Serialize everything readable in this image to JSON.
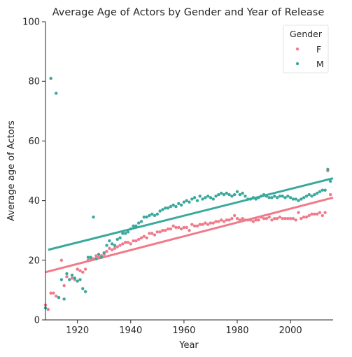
{
  "chart_data": {
    "type": "scatter",
    "title": "Average Age of Actors by Gender and Year of Release",
    "xlabel": "Year",
    "ylabel": "Average age of Actors",
    "xlim": [
      1908,
      2016
    ],
    "ylim": [
      0,
      100
    ],
    "xticks": [
      1920,
      1940,
      1960,
      1980,
      2000
    ],
    "yticks": [
      0,
      20,
      40,
      60,
      80,
      100
    ],
    "grid": false,
    "legend": {
      "title": "Gender",
      "placement": "top-right"
    },
    "series": [
      {
        "name": "F",
        "color": "#f07a8a",
        "trendline": {
          "x": [
            1908,
            2016
          ],
          "y": [
            16.0,
            41.0
          ]
        },
        "points": [
          [
            1908,
            5.0
          ],
          [
            1909,
            3.5
          ],
          [
            1910,
            9.0
          ],
          [
            1911,
            9.0
          ],
          [
            1912,
            8.0
          ],
          [
            1913,
            7.5
          ],
          [
            1914,
            20.0
          ],
          [
            1915,
            11.5
          ],
          [
            1916,
            14.5
          ],
          [
            1917,
            13.5
          ],
          [
            1918,
            14.0
          ],
          [
            1919,
            13.5
          ],
          [
            1920,
            17.0
          ],
          [
            1921,
            16.5
          ],
          [
            1922,
            16.0
          ],
          [
            1923,
            17.0
          ],
          [
            1924,
            20.0
          ],
          [
            1925,
            20.5
          ],
          [
            1926,
            20.5
          ],
          [
            1927,
            21.5
          ],
          [
            1928,
            21.0
          ],
          [
            1929,
            21.5
          ],
          [
            1930,
            22.0
          ],
          [
            1931,
            23.0
          ],
          [
            1932,
            24.0
          ],
          [
            1933,
            23.5
          ],
          [
            1934,
            24.0
          ],
          [
            1935,
            24.5
          ],
          [
            1936,
            25.0
          ],
          [
            1937,
            25.5
          ],
          [
            1938,
            26.0
          ],
          [
            1939,
            26.0
          ],
          [
            1940,
            25.5
          ],
          [
            1941,
            26.5
          ],
          [
            1942,
            26.5
          ],
          [
            1943,
            27.0
          ],
          [
            1944,
            27.5
          ],
          [
            1945,
            28.0
          ],
          [
            1946,
            27.5
          ],
          [
            1947,
            29.0
          ],
          [
            1948,
            29.0
          ],
          [
            1949,
            28.5
          ],
          [
            1950,
            29.5
          ],
          [
            1951,
            29.5
          ],
          [
            1952,
            30.0
          ],
          [
            1953,
            30.0
          ],
          [
            1954,
            30.5
          ],
          [
            1955,
            30.5
          ],
          [
            1956,
            31.5
          ],
          [
            1957,
            31.0
          ],
          [
            1958,
            31.0
          ],
          [
            1959,
            30.5
          ],
          [
            1960,
            31.0
          ],
          [
            1961,
            31.0
          ],
          [
            1962,
            30.0
          ],
          [
            1963,
            32.0
          ],
          [
            1964,
            31.5
          ],
          [
            1965,
            31.5
          ],
          [
            1966,
            32.0
          ],
          [
            1967,
            32.0
          ],
          [
            1968,
            32.5
          ],
          [
            1969,
            32.0
          ],
          [
            1970,
            32.5
          ],
          [
            1971,
            32.5
          ],
          [
            1972,
            33.0
          ],
          [
            1973,
            33.0
          ],
          [
            1974,
            33.5
          ],
          [
            1975,
            33.0
          ],
          [
            1976,
            33.5
          ],
          [
            1977,
            33.5
          ],
          [
            1978,
            34.0
          ],
          [
            1979,
            35.0
          ],
          [
            1980,
            34.0
          ],
          [
            1981,
            33.5
          ],
          [
            1982,
            34.0
          ],
          [
            1983,
            33.5
          ],
          [
            1984,
            33.5
          ],
          [
            1985,
            33.5
          ],
          [
            1986,
            33.0
          ],
          [
            1987,
            33.5
          ],
          [
            1988,
            33.5
          ],
          [
            1989,
            34.5
          ],
          [
            1990,
            34.0
          ],
          [
            1991,
            34.0
          ],
          [
            1992,
            34.5
          ],
          [
            1993,
            33.5
          ],
          [
            1994,
            34.0
          ],
          [
            1995,
            34.0
          ],
          [
            1996,
            34.5
          ],
          [
            1997,
            34.0
          ],
          [
            1998,
            34.0
          ],
          [
            1999,
            34.0
          ],
          [
            2000,
            34.0
          ],
          [
            2001,
            34.0
          ],
          [
            2002,
            33.5
          ],
          [
            2003,
            36.0
          ],
          [
            2004,
            34.0
          ],
          [
            2005,
            34.5
          ],
          [
            2006,
            34.5
          ],
          [
            2007,
            35.0
          ],
          [
            2008,
            35.5
          ],
          [
            2009,
            35.5
          ],
          [
            2010,
            35.5
          ],
          [
            2011,
            36.0
          ],
          [
            2012,
            35.0
          ],
          [
            2013,
            36.0
          ],
          [
            2014,
            50.0
          ],
          [
            2015,
            42.0
          ]
        ]
      },
      {
        "name": "M",
        "color": "#3aa89c",
        "trendline": {
          "x": [
            1909,
            2016
          ],
          "y": [
            23.5,
            47.5
          ]
        },
        "points": [
          [
            1908,
            4.0
          ],
          [
            1910,
            81.0
          ],
          [
            1912,
            76.0
          ],
          [
            1913,
            7.5
          ],
          [
            1914,
            13.5
          ],
          [
            1915,
            7.0
          ],
          [
            1916,
            15.5
          ],
          [
            1917,
            13.5
          ],
          [
            1918,
            15.0
          ],
          [
            1919,
            14.0
          ],
          [
            1920,
            13.0
          ],
          [
            1921,
            13.5
          ],
          [
            1922,
            10.5
          ],
          [
            1923,
            9.5
          ],
          [
            1924,
            21.0
          ],
          [
            1925,
            21.0
          ],
          [
            1926,
            34.5
          ],
          [
            1927,
            20.5
          ],
          [
            1928,
            22.0
          ],
          [
            1929,
            21.0
          ],
          [
            1930,
            22.5
          ],
          [
            1931,
            25.0
          ],
          [
            1932,
            26.5
          ],
          [
            1933,
            25.5
          ],
          [
            1934,
            25.0
          ],
          [
            1935,
            27.0
          ],
          [
            1936,
            27.5
          ],
          [
            1937,
            29.0
          ],
          [
            1938,
            29.0
          ],
          [
            1939,
            29.5
          ],
          [
            1940,
            30.5
          ],
          [
            1941,
            31.5
          ],
          [
            1942,
            31.5
          ],
          [
            1943,
            32.5
          ],
          [
            1944,
            33.0
          ],
          [
            1945,
            34.5
          ],
          [
            1946,
            34.5
          ],
          [
            1947,
            35.0
          ],
          [
            1948,
            35.5
          ],
          [
            1949,
            35.0
          ],
          [
            1950,
            35.5
          ],
          [
            1951,
            36.5
          ],
          [
            1952,
            37.0
          ],
          [
            1953,
            37.5
          ],
          [
            1954,
            37.5
          ],
          [
            1955,
            38.0
          ],
          [
            1956,
            38.5
          ],
          [
            1957,
            38.0
          ],
          [
            1958,
            39.0
          ],
          [
            1959,
            38.5
          ],
          [
            1960,
            39.5
          ],
          [
            1961,
            40.0
          ],
          [
            1962,
            39.5
          ],
          [
            1963,
            40.5
          ],
          [
            1964,
            41.0
          ],
          [
            1965,
            40.0
          ],
          [
            1966,
            41.5
          ],
          [
            1967,
            40.5
          ],
          [
            1968,
            41.0
          ],
          [
            1969,
            41.5
          ],
          [
            1970,
            41.0
          ],
          [
            1971,
            40.5
          ],
          [
            1972,
            41.5
          ],
          [
            1973,
            42.0
          ],
          [
            1974,
            42.5
          ],
          [
            1975,
            42.0
          ],
          [
            1976,
            42.5
          ],
          [
            1977,
            42.0
          ],
          [
            1978,
            41.5
          ],
          [
            1979,
            42.0
          ],
          [
            1980,
            43.0
          ],
          [
            1981,
            42.0
          ],
          [
            1982,
            42.5
          ],
          [
            1983,
            41.5
          ],
          [
            1984,
            40.5
          ],
          [
            1985,
            40.5
          ],
          [
            1986,
            41.0
          ],
          [
            1987,
            40.5
          ],
          [
            1988,
            41.0
          ],
          [
            1989,
            41.5
          ],
          [
            1990,
            42.0
          ],
          [
            1991,
            41.5
          ],
          [
            1992,
            41.0
          ],
          [
            1993,
            41.0
          ],
          [
            1994,
            41.5
          ],
          [
            1995,
            41.0
          ],
          [
            1996,
            41.5
          ],
          [
            1997,
            41.5
          ],
          [
            1998,
            41.0
          ],
          [
            1999,
            41.5
          ],
          [
            2000,
            41.0
          ],
          [
            2001,
            40.5
          ],
          [
            2002,
            40.5
          ],
          [
            2003,
            40.0
          ],
          [
            2004,
            40.5
          ],
          [
            2005,
            41.0
          ],
          [
            2006,
            41.5
          ],
          [
            2007,
            42.0
          ],
          [
            2008,
            41.5
          ],
          [
            2009,
            42.0
          ],
          [
            2010,
            42.5
          ],
          [
            2011,
            43.0
          ],
          [
            2012,
            43.5
          ],
          [
            2013,
            43.5
          ],
          [
            2014,
            50.5
          ],
          [
            2015,
            46.5
          ]
        ]
      }
    ]
  }
}
